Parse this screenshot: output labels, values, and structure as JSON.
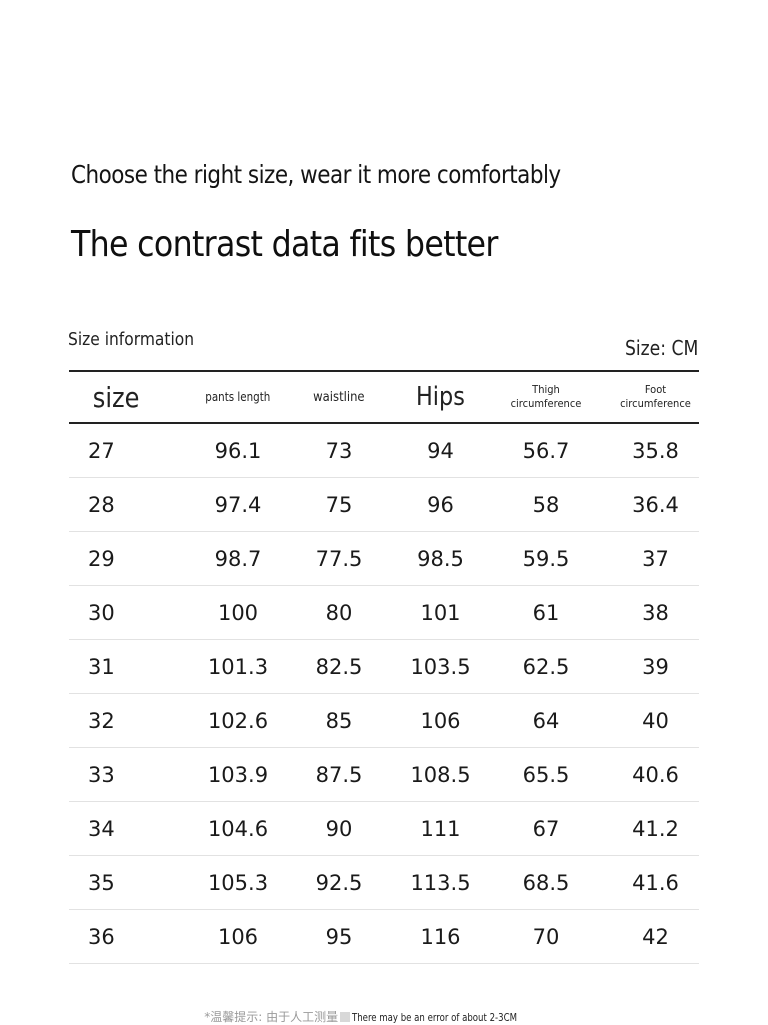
{
  "heading": {
    "subtitle": "Choose the right size, wear it more comfortably",
    "title": "The contrast data fits better"
  },
  "table_meta": {
    "label": "Size information",
    "unit": "Size: CM"
  },
  "table": {
    "headers": [
      "size",
      "pants length",
      "waistline",
      "Hips",
      "Thigh circumference",
      "Foot circumference"
    ],
    "header_lines": {
      "thigh": [
        "Thigh",
        "circumference"
      ],
      "foot": [
        "Foot",
        "circumference"
      ]
    },
    "rows": [
      [
        "27",
        "96.1",
        "73",
        "94",
        "56.7",
        "35.8"
      ],
      [
        "28",
        "97.4",
        "75",
        "96",
        "58",
        "36.4"
      ],
      [
        "29",
        "98.7",
        "77.5",
        "98.5",
        "59.5",
        "37"
      ],
      [
        "30",
        "100",
        "80",
        "101",
        "61",
        "38"
      ],
      [
        "31",
        "101.3",
        "82.5",
        "103.5",
        "62.5",
        "39"
      ],
      [
        "32",
        "102.6",
        "85",
        "106",
        "64",
        "40"
      ],
      [
        "33",
        "103.9",
        "87.5",
        "108.5",
        "65.5",
        "40.6"
      ],
      [
        "34",
        "104.6",
        "90",
        "111",
        "67",
        "41.2"
      ],
      [
        "35",
        "105.3",
        "92.5",
        "113.5",
        "68.5",
        "41.6"
      ],
      [
        "36",
        "106",
        "95",
        "116",
        "70",
        "42"
      ]
    ]
  },
  "footnote": {
    "cn": "*温馨提示:   由于人工测量",
    "en": "There may be an error of about 2-3CM"
  }
}
